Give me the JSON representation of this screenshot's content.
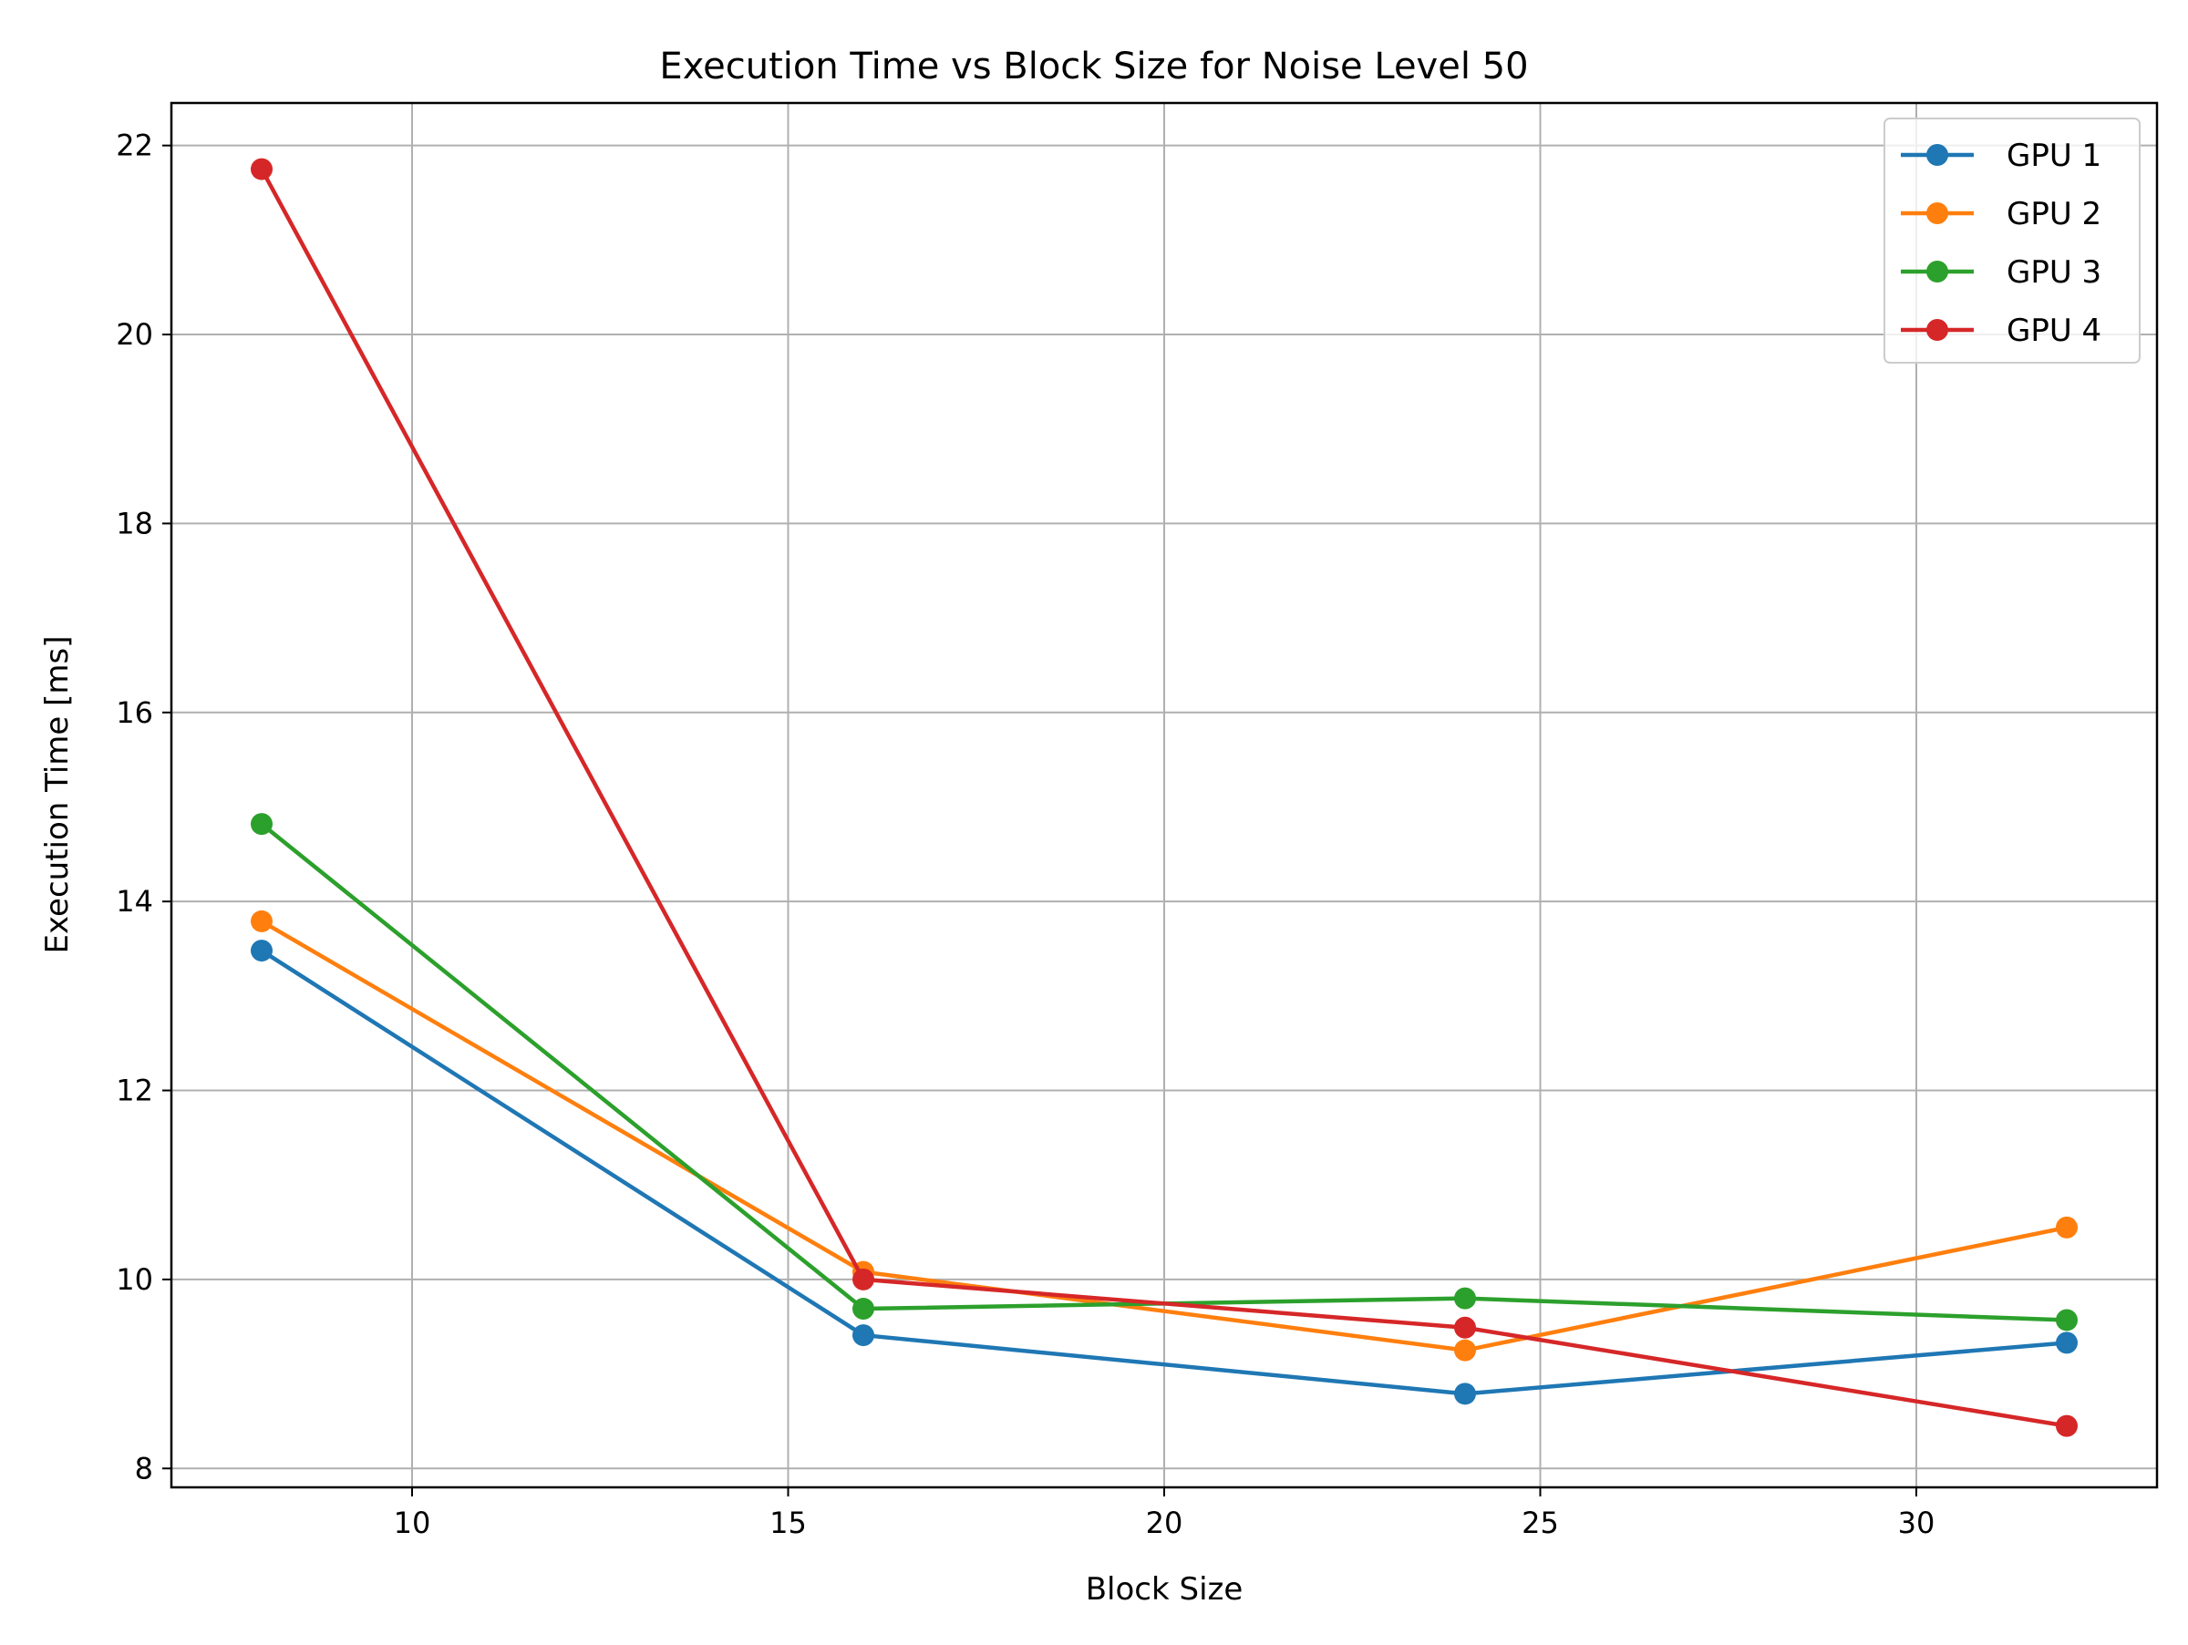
{
  "chart_data": {
    "type": "line",
    "title": "Execution Time vs Block Size for Noise Level 50",
    "xlabel": "Block Size",
    "ylabel": "Execution Time [ms]",
    "xlim": [
      6.8,
      33.2
    ],
    "ylim": [
      7.8,
      22.45
    ],
    "xticks": [
      10,
      15,
      20,
      25,
      30
    ],
    "yticks": [
      8,
      10,
      12,
      14,
      16,
      18,
      20,
      22
    ],
    "grid": true,
    "legend_position": "top-right",
    "x": [
      8,
      16,
      24,
      32
    ],
    "series": [
      {
        "name": "GPU 1",
        "color": "#1f77b4",
        "marker": "circle",
        "values": [
          13.48,
          9.41,
          8.79,
          9.33
        ]
      },
      {
        "name": "GPU 2",
        "color": "#ff7f0e",
        "marker": "circle",
        "values": [
          13.79,
          10.08,
          9.25,
          10.55
        ]
      },
      {
        "name": "GPU 3",
        "color": "#2ca02c",
        "marker": "circle",
        "values": [
          14.82,
          9.69,
          9.8,
          9.57
        ]
      },
      {
        "name": "GPU 4",
        "color": "#d62728",
        "marker": "circle",
        "values": [
          21.75,
          10.0,
          9.49,
          8.45
        ]
      }
    ]
  }
}
